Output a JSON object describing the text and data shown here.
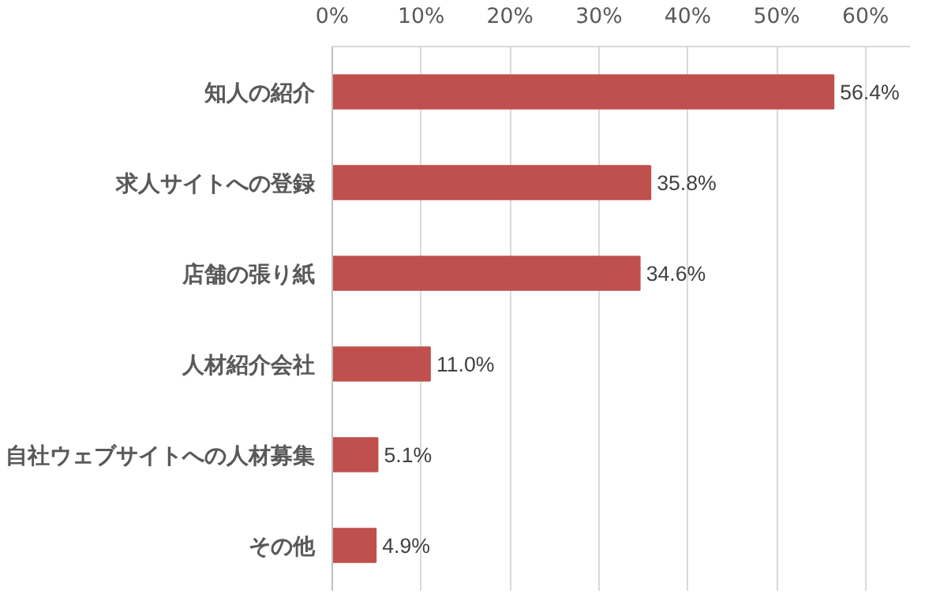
{
  "chart_data": {
    "type": "bar",
    "orientation": "horizontal",
    "categories": [
      "知人の紹介",
      "求人サイトへの登録",
      "店舗の張り紙",
      "人材紹介会社",
      "自社ウェブサイトへの人材募集",
      "その他"
    ],
    "values": [
      56.4,
      35.8,
      34.6,
      11.0,
      5.1,
      4.9
    ],
    "color": "#c0504d",
    "value_labels": [
      "56.4%",
      "35.8%",
      "34.6%",
      "11.0%",
      "5.1%",
      "4.9%"
    ],
    "xlim": [
      0,
      65
    ],
    "xticks": [
      {
        "value": 0,
        "label": "0%"
      },
      {
        "value": 10,
        "label": "10%"
      },
      {
        "value": 20,
        "label": "20%"
      },
      {
        "value": 30,
        "label": "30%"
      },
      {
        "value": 40,
        "label": "40%"
      },
      {
        "value": 50,
        "label": "50%"
      },
      {
        "value": 60,
        "label": "60%"
      }
    ],
    "grid": "x"
  }
}
